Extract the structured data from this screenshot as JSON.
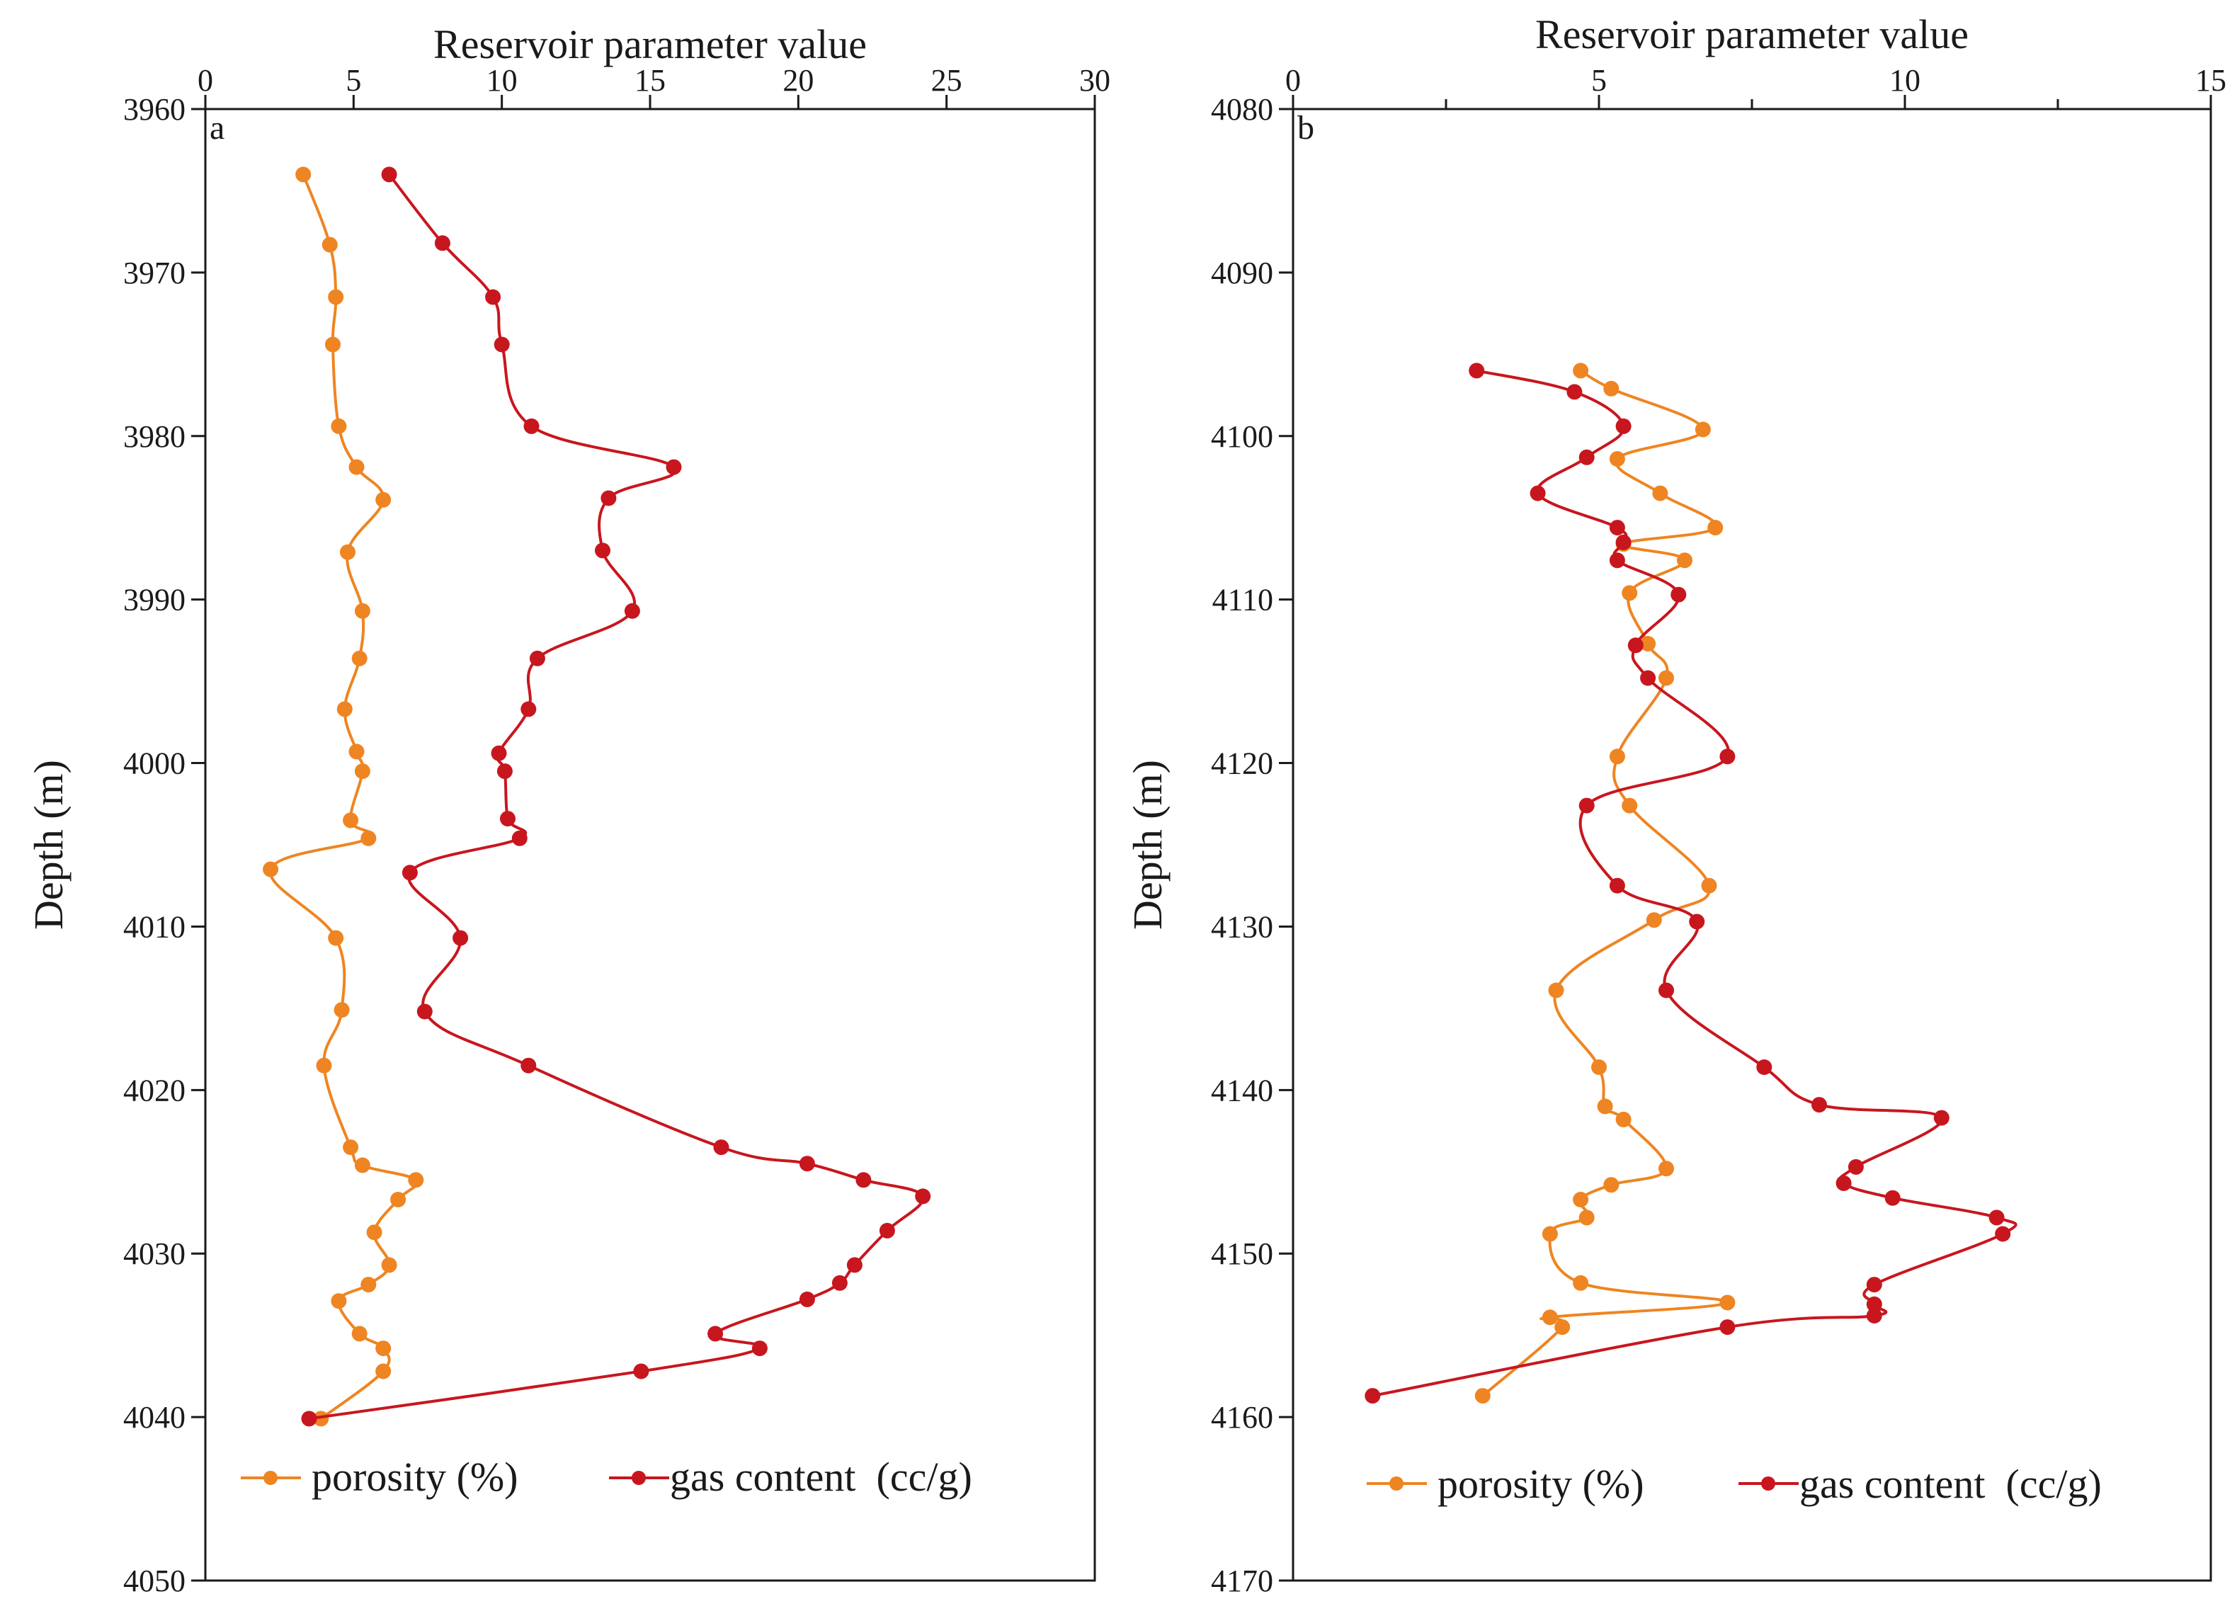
{
  "chart_data": [
    {
      "type": "line",
      "panel_label": "a",
      "title": "Reservoir parameter value",
      "xlabel": "Reservoir parameter value",
      "ylabel": "Depth (m)",
      "xlim": [
        0,
        30
      ],
      "ylim": [
        3960,
        4050
      ],
      "y_inverted": true,
      "x_ticks": [
        "0",
        "5",
        "10",
        "15",
        "20",
        "25",
        "30"
      ],
      "y_ticks": [
        "3960",
        "3970",
        "3980",
        "3990",
        "4000",
        "4010",
        "4020",
        "4030",
        "4040",
        "4050"
      ],
      "legend_position": "bottom",
      "series": [
        {
          "name": "porosity (%)",
          "color": "#ee8522",
          "x": [
            3.3,
            4.2,
            4.4,
            4.3,
            4.5,
            5.1,
            6.0,
            4.8,
            5.3,
            5.2,
            4.7,
            5.1,
            5.3,
            4.9,
            5.5,
            2.2,
            4.4,
            4.6,
            4.0,
            4.9,
            5.3,
            7.1,
            6.5,
            5.7,
            6.2,
            5.5,
            4.5,
            5.2,
            6.0,
            6.0,
            3.9
          ],
          "y": [
            3964,
            3968.3,
            3971.5,
            3974.4,
            3979.4,
            3981.9,
            3983.9,
            3987.1,
            3990.7,
            3993.6,
            3996.7,
            3999.3,
            4000.5,
            4003.5,
            4004.6,
            4006.5,
            4010.7,
            4015.1,
            4018.5,
            4023.5,
            4024.6,
            4025.5,
            4026.7,
            4028.7,
            4030.7,
            4031.9,
            4032.9,
            4034.9,
            4035.8,
            4037.2,
            4040.1
          ]
        },
        {
          "name": "gas content  (cc/g)",
          "color": "#c8161e",
          "x": [
            6.2,
            8.0,
            9.7,
            10.0,
            11.0,
            15.8,
            13.6,
            13.4,
            14.4,
            11.2,
            10.9,
            9.9,
            10.1,
            10.2,
            10.6,
            6.9,
            8.6,
            7.4,
            10.9,
            17.4,
            20.3,
            22.2,
            24.2,
            23.0,
            21.9,
            21.4,
            20.3,
            17.2,
            18.7,
            14.7,
            3.5
          ],
          "y": [
            3964,
            3968.2,
            3971.5,
            3974.4,
            3979.4,
            3981.9,
            3983.8,
            3987.0,
            3990.7,
            3993.6,
            3996.7,
            3999.4,
            4000.5,
            4003.4,
            4004.6,
            4006.7,
            4010.7,
            4015.2,
            4018.5,
            4023.5,
            4024.5,
            4025.5,
            4026.5,
            4028.6,
            4030.7,
            4031.8,
            4032.8,
            4034.9,
            4035.8,
            4037.2,
            4040.1
          ]
        }
      ]
    },
    {
      "type": "line",
      "panel_label": "b",
      "title": "Reservoir parameter value",
      "xlabel": "Reservoir parameter value",
      "ylabel": "Depth (m)",
      "xlim": [
        0,
        15
      ],
      "ylim": [
        4080,
        4170
      ],
      "y_inverted": true,
      "x_ticks": [
        "0",
        "5",
        "10",
        "15"
      ],
      "y_ticks": [
        "4080",
        "4090",
        "4100",
        "4110",
        "4120",
        "4130",
        "4140",
        "4150",
        "4160",
        "4170"
      ],
      "legend_position": "bottom",
      "series": [
        {
          "name": "porosity (%)",
          "color": "#ee8522",
          "x": [
            4.7,
            5.2,
            6.7,
            5.3,
            6.0,
            6.9,
            5.4,
            6.4,
            5.5,
            5.8,
            6.1,
            5.3,
            5.5,
            6.8,
            5.9,
            4.3,
            5.0,
            5.1,
            5.4,
            6.1,
            5.2,
            4.7,
            4.8,
            4.2,
            4.7,
            7.1,
            4.2,
            4.4,
            3.1
          ],
          "y": [
            4096.0,
            4097.1,
            4099.6,
            4101.4,
            4103.5,
            4105.6,
            4106.6,
            4107.6,
            4109.6,
            4112.7,
            4114.8,
            4119.6,
            4122.6,
            4127.5,
            4129.6,
            4133.9,
            4138.6,
            4141.0,
            4141.8,
            4144.8,
            4145.8,
            4146.7,
            4147.8,
            4148.8,
            4151.8,
            4153.0,
            4153.9,
            4154.5,
            4158.7
          ]
        },
        {
          "name": "gas content  (cc/g)",
          "color": "#c8161e",
          "x": [
            3.0,
            4.6,
            5.4,
            4.8,
            4.0,
            5.3,
            5.4,
            5.3,
            6.3,
            5.6,
            5.8,
            7.1,
            4.8,
            5.3,
            6.6,
            6.1,
            7.7,
            8.6,
            10.6,
            9.2,
            9.0,
            9.8,
            11.5,
            11.6,
            9.5,
            9.5,
            9.5,
            7.1,
            1.3
          ],
          "y": [
            4096.0,
            4097.3,
            4099.4,
            4101.3,
            4103.5,
            4105.6,
            4106.5,
            4107.6,
            4109.7,
            4112.8,
            4114.8,
            4119.6,
            4122.6,
            4127.5,
            4129.7,
            4133.9,
            4138.6,
            4140.9,
            4141.7,
            4144.7,
            4145.7,
            4146.6,
            4147.8,
            4148.8,
            4151.9,
            4153.1,
            4153.8,
            4154.5,
            4158.7
          ]
        }
      ]
    }
  ]
}
